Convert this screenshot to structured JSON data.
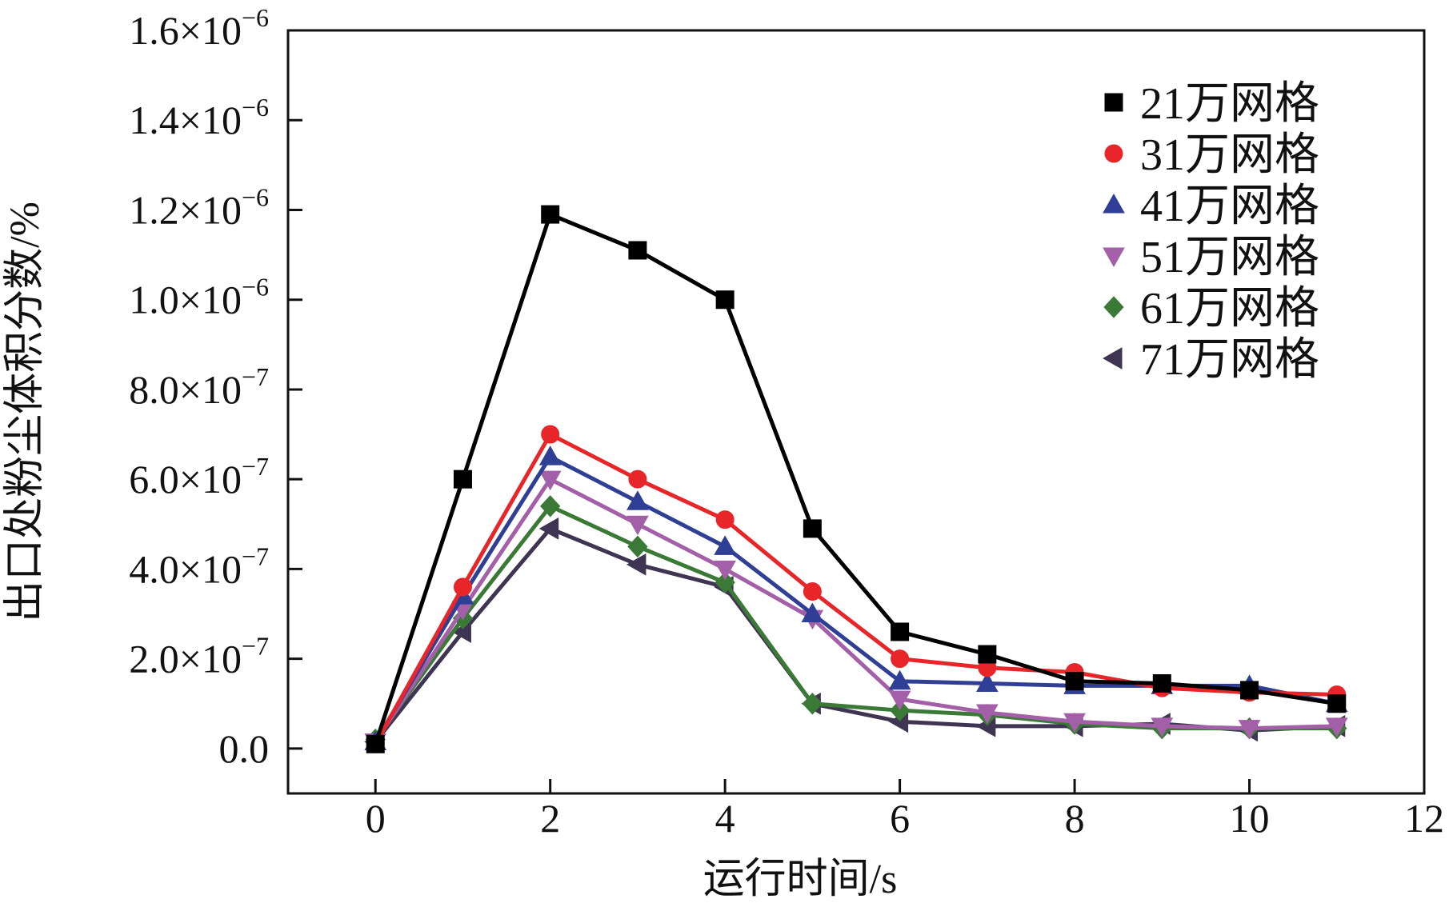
{
  "chart_data": {
    "type": "line",
    "title": "",
    "xlabel": "运行时间/s",
    "ylabel": "出口处粉尘体积分数/%",
    "xlim": [
      -1,
      12
    ],
    "ylim": [
      -1e-07,
      1.6e-06
    ],
    "x_ticks": [
      {
        "value": 0,
        "label": "0"
      },
      {
        "value": 2,
        "label": "2"
      },
      {
        "value": 4,
        "label": "4"
      },
      {
        "value": 6,
        "label": "6"
      },
      {
        "value": 8,
        "label": "8"
      },
      {
        "value": 10,
        "label": "10"
      },
      {
        "value": 12,
        "label": "12"
      }
    ],
    "y_ticks": [
      {
        "value": 0,
        "mantissa": "0.0",
        "exponent": ""
      },
      {
        "value": 2e-07,
        "mantissa": "2.0×10",
        "exponent": "−7"
      },
      {
        "value": 4e-07,
        "mantissa": "4.0×10",
        "exponent": "−7"
      },
      {
        "value": 6e-07,
        "mantissa": "6.0×10",
        "exponent": "−7"
      },
      {
        "value": 8e-07,
        "mantissa": "8.0×10",
        "exponent": "−7"
      },
      {
        "value": 1e-06,
        "mantissa": "1.0×10",
        "exponent": "−6"
      },
      {
        "value": 1.2e-06,
        "mantissa": "1.2×10",
        "exponent": "−6"
      },
      {
        "value": 1.4e-06,
        "mantissa": "1.4×10",
        "exponent": "−6"
      },
      {
        "value": 1.6e-06,
        "mantissa": "1.6×10",
        "exponent": "−6"
      }
    ],
    "grid": false,
    "legend_position": "top-right",
    "x": [
      0,
      1,
      2,
      3,
      4,
      5,
      6,
      7,
      8,
      9,
      10,
      11
    ],
    "series": [
      {
        "name": "21万网格",
        "marker": "square",
        "color": "#000000",
        "values": [
          1e-08,
          6e-07,
          1.19e-06,
          1.11e-06,
          1e-06,
          4.9e-07,
          2.6e-07,
          2.1e-07,
          1.5e-07,
          1.45e-07,
          1.3e-07,
          1e-07
        ]
      },
      {
        "name": "31万网格",
        "marker": "circle",
        "color": "#e8262a",
        "values": [
          1e-08,
          3.6e-07,
          7e-07,
          6e-07,
          5.1e-07,
          3.5e-07,
          2e-07,
          1.8e-07,
          1.7e-07,
          1.35e-07,
          1.25e-07,
          1.2e-07
        ]
      },
      {
        "name": "41万网格",
        "marker": "triangle-up",
        "color": "#2e3f95",
        "values": [
          1.5e-08,
          3.4e-07,
          6.5e-07,
          5.5e-07,
          4.5e-07,
          3e-07,
          1.5e-07,
          1.45e-07,
          1.4e-07,
          1.4e-07,
          1.4e-07,
          1e-07
        ]
      },
      {
        "name": "51万网格",
        "marker": "triangle-down",
        "color": "#a35fa8",
        "values": [
          1.5e-08,
          3.1e-07,
          6e-07,
          5e-07,
          4e-07,
          2.9e-07,
          1.1e-07,
          8e-08,
          6e-08,
          5e-08,
          4.5e-08,
          5e-08
        ]
      },
      {
        "name": "61万网格",
        "marker": "diamond",
        "color": "#3a7a36",
        "values": [
          2e-08,
          2.9e-07,
          5.4e-07,
          4.5e-07,
          3.7e-07,
          1e-07,
          8.5e-08,
          7.5e-08,
          5.5e-08,
          4.5e-08,
          4.5e-08,
          4.5e-08
        ]
      },
      {
        "name": "71万网格",
        "marker": "triangle-left",
        "color": "#3f3552",
        "values": [
          1.5e-08,
          2.6e-07,
          4.9e-07,
          4.1e-07,
          3.6e-07,
          1e-07,
          6e-08,
          5e-08,
          5e-08,
          5.5e-08,
          4e-08,
          5e-08
        ]
      }
    ]
  }
}
